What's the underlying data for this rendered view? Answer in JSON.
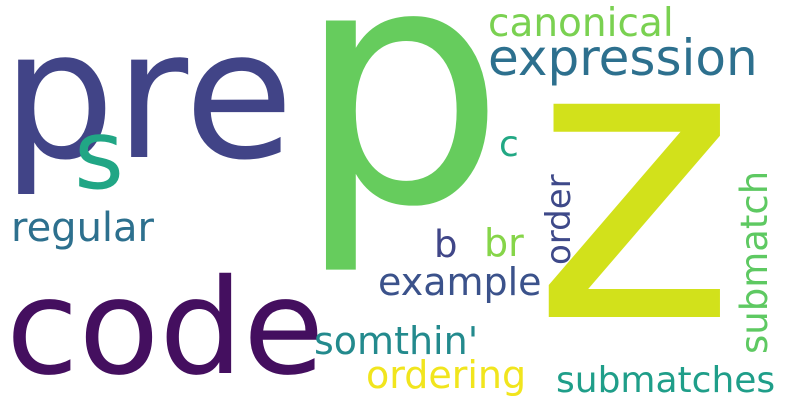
{
  "words": [
    {
      "text": "p",
      "color": "#66cc5d"
    },
    {
      "text": "z",
      "color": "#d2e11b"
    },
    {
      "text": "pre",
      "color": "#414487"
    },
    {
      "text": "code",
      "color": "#440f5f"
    },
    {
      "text": "s",
      "color": "#21a685"
    },
    {
      "text": "expression",
      "color": "#2d708e"
    },
    {
      "text": "canonical",
      "color": "#7ad151"
    },
    {
      "text": "regular",
      "color": "#2d708e"
    },
    {
      "text": "c",
      "color": "#22a884"
    },
    {
      "text": "order",
      "color": "#3e4989"
    },
    {
      "text": "submatch",
      "color": "#5ec962"
    },
    {
      "text": "b",
      "color": "#404688"
    },
    {
      "text": "br",
      "color": "#86d549"
    },
    {
      "text": "example",
      "color": "#3b528b"
    },
    {
      "text": "somthin'",
      "color": "#238a8d"
    },
    {
      "text": "ordering",
      "color": "#f1e51d"
    },
    {
      "text": "submatches",
      "color": "#1f9e89"
    }
  ]
}
